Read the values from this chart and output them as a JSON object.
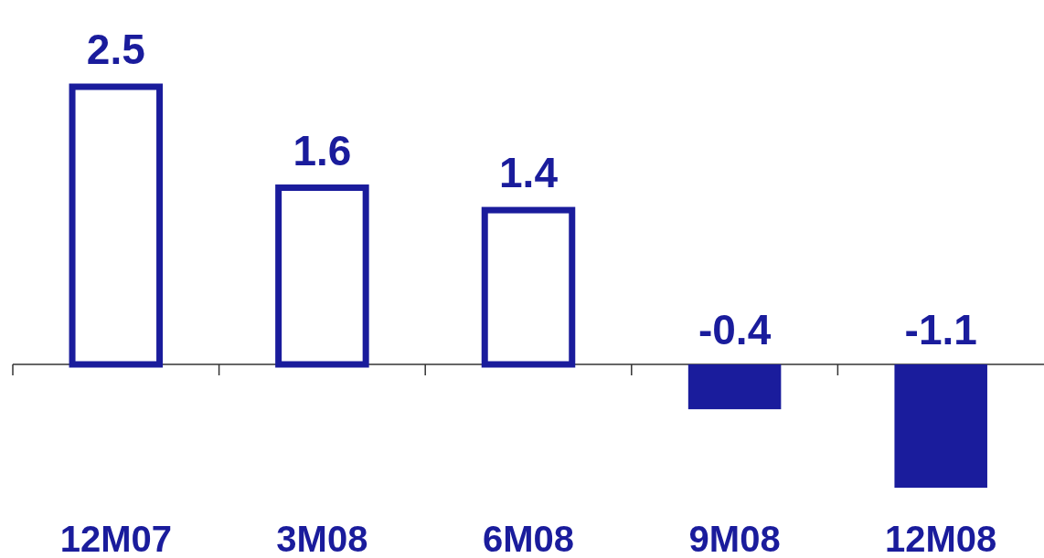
{
  "chart_data": {
    "type": "bar",
    "categories": [
      "12M07",
      "3M08",
      "6M08",
      "9M08",
      "12M08"
    ],
    "values": [
      2.5,
      1.6,
      1.4,
      -0.4,
      -1.1
    ],
    "color": "#1a1c9c",
    "data_labels": true
  }
}
